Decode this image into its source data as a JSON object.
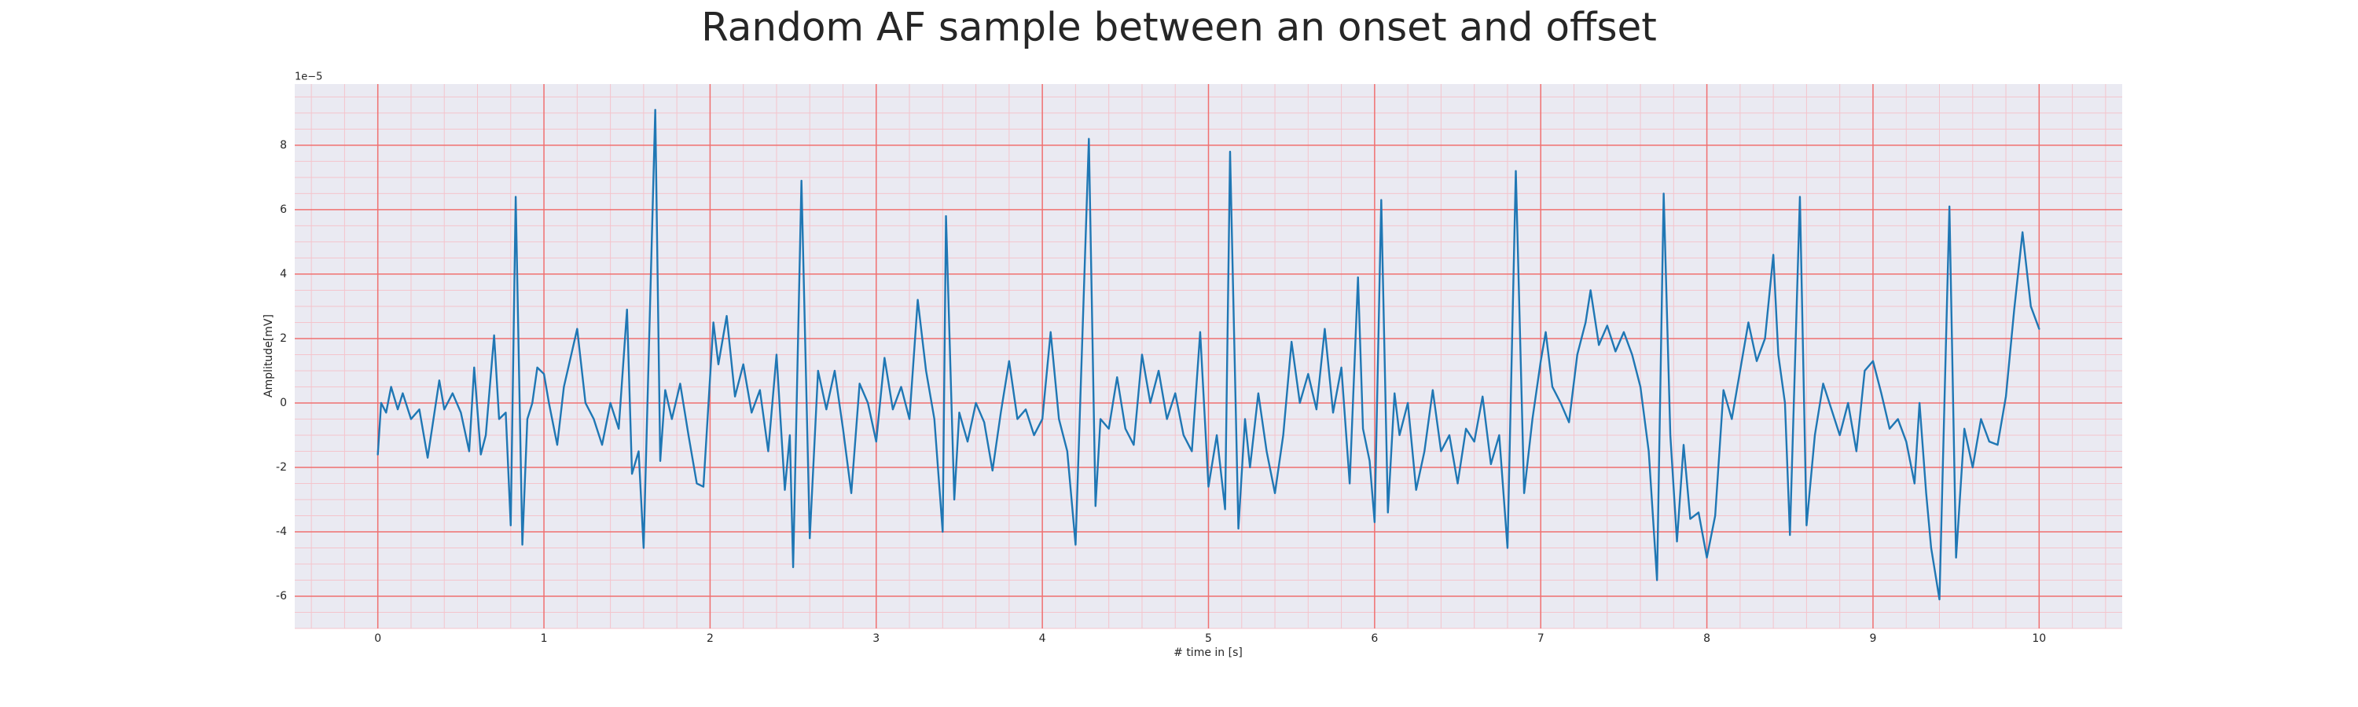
{
  "chart_data": {
    "type": "line",
    "title": "Random AF sample between an onset and offset",
    "xlabel": "# time in [s]",
    "ylabel": "Amplitude[mV]",
    "y_offset_label": "1e−5",
    "xlim": [
      -0.5,
      10.5
    ],
    "ylim": [
      -7,
      9.9
    ],
    "xticks": [
      0,
      1,
      2,
      3,
      4,
      5,
      6,
      7,
      8,
      9,
      10
    ],
    "yticks": [
      -6,
      -4,
      -2,
      0,
      2,
      4,
      6,
      8
    ],
    "grid": true,
    "grid_color": "#f07070",
    "minor_grid": true,
    "minor_grid_color": "#f4c4cc",
    "xminor_per_major": 5,
    "yminor_per_major": 4,
    "background": "#eaeaf2",
    "series": [
      {
        "color": "#1f77b4",
        "x": [
          0,
          0.02,
          0.05,
          0.08,
          0.12,
          0.15,
          0.2,
          0.25,
          0.3,
          0.37,
          0.4,
          0.45,
          0.5,
          0.55,
          0.58,
          0.62,
          0.65,
          0.7,
          0.73,
          0.77,
          0.8,
          0.83,
          0.87,
          0.9,
          0.93,
          0.96,
          1.0,
          1.03,
          1.08,
          1.12,
          1.2,
          1.25,
          1.3,
          1.35,
          1.4,
          1.45,
          1.5,
          1.53,
          1.57,
          1.6,
          1.67,
          1.7,
          1.73,
          1.77,
          1.82,
          1.87,
          1.92,
          1.96,
          2.02,
          2.05,
          2.1,
          2.15,
          2.2,
          2.25,
          2.3,
          2.35,
          2.4,
          2.45,
          2.48,
          2.5,
          2.55,
          2.6,
          2.65,
          2.7,
          2.75,
          2.8,
          2.85,
          2.9,
          2.95,
          3.0,
          3.05,
          3.1,
          3.15,
          3.2,
          3.25,
          3.3,
          3.35,
          3.4,
          3.42,
          3.47,
          3.5,
          3.55,
          3.6,
          3.65,
          3.7,
          3.75,
          3.8,
          3.85,
          3.9,
          3.95,
          4.0,
          4.05,
          4.1,
          4.15,
          4.2,
          4.28,
          4.32,
          4.35,
          4.4,
          4.45,
          4.5,
          4.55,
          4.6,
          4.65,
          4.7,
          4.75,
          4.8,
          4.85,
          4.9,
          4.95,
          5.0,
          5.05,
          5.1,
          5.13,
          5.18,
          5.22,
          5.25,
          5.3,
          5.35,
          5.4,
          5.45,
          5.5,
          5.55,
          5.6,
          5.65,
          5.7,
          5.75,
          5.8,
          5.85,
          5.9,
          5.93,
          5.97,
          6.0,
          6.04,
          6.08,
          6.12,
          6.15,
          6.2,
          6.25,
          6.3,
          6.35,
          6.4,
          6.45,
          6.5,
          6.55,
          6.6,
          6.65,
          6.7,
          6.75,
          6.8,
          6.85,
          6.9,
          6.95,
          7.0,
          7.03,
          7.07,
          7.12,
          7.17,
          7.22,
          7.27,
          7.3,
          7.35,
          7.4,
          7.45,
          7.5,
          7.55,
          7.6,
          7.65,
          7.7,
          7.74,
          7.78,
          7.82,
          7.86,
          7.9,
          7.95,
          8.0,
          8.05,
          8.1,
          8.15,
          8.2,
          8.25,
          8.3,
          8.35,
          8.4,
          8.43,
          8.47,
          8.5,
          8.56,
          8.6,
          8.65,
          8.7,
          8.75,
          8.8,
          8.85,
          8.9,
          8.95,
          9.0,
          9.05,
          9.1,
          9.15,
          9.2,
          9.25,
          9.28,
          9.32,
          9.35,
          9.4,
          9.46,
          9.5,
          9.55,
          9.6,
          9.65,
          9.7,
          9.75,
          9.8,
          9.85,
          9.9,
          9.95,
          10.0
        ],
        "values": [
          -1.6,
          0,
          -0.3,
          0.5,
          -0.2,
          0.3,
          -0.5,
          -0.2,
          -1.7,
          0.7,
          -0.2,
          0.3,
          -0.3,
          -1.5,
          1.1,
          -1.6,
          -1,
          2.1,
          -0.5,
          -0.3,
          -3.8,
          6.4,
          -4.4,
          -0.5,
          0,
          1.1,
          0.9,
          0,
          -1.3,
          0.5,
          2.3,
          0,
          -0.5,
          -1.3,
          0,
          -0.8,
          2.9,
          -2.2,
          -1.5,
          -4.5,
          9.1,
          -1.8,
          0.4,
          -0.5,
          0.6,
          -1,
          -2.5,
          -2.6,
          2.5,
          1.2,
          2.7,
          0.2,
          1.2,
          -0.3,
          0.4,
          -1.5,
          1.5,
          -2.7,
          -1,
          -5.1,
          6.9,
          -4.2,
          1,
          -0.2,
          1,
          -0.8,
          -2.8,
          0.6,
          0,
          -1.2,
          1.4,
          -0.2,
          0.5,
          -0.5,
          3.2,
          1,
          -0.5,
          -4,
          5.8,
          -3,
          -0.3,
          -1.2,
          0,
          -0.6,
          -2.1,
          -0.3,
          1.3,
          -0.5,
          -0.2,
          -1,
          -0.5,
          2.2,
          -0.5,
          -1.5,
          -4.4,
          8.2,
          -3.2,
          -0.5,
          -0.8,
          0.8,
          -0.8,
          -1.3,
          1.5,
          0,
          1,
          -0.5,
          0.3,
          -1,
          -1.5,
          2.2,
          -2.6,
          -1,
          -3.3,
          7.8,
          -3.9,
          -0.5,
          -2,
          0.3,
          -1.5,
          -2.8,
          -1,
          1.9,
          0,
          0.9,
          -0.2,
          2.3,
          -0.3,
          1.1,
          -2.5,
          3.9,
          -0.8,
          -1.8,
          -3.7,
          6.3,
          -3.4,
          0.3,
          -1,
          0,
          -2.7,
          -1.5,
          0.4,
          -1.5,
          -1,
          -2.5,
          -0.8,
          -1.2,
          0.2,
          -1.9,
          -1,
          -4.5,
          7.2,
          -2.8,
          -0.5,
          1.3,
          2.2,
          0.5,
          0,
          -0.6,
          1.5,
          2.5,
          3.5,
          1.8,
          2.4,
          1.6,
          2.2,
          1.5,
          0.5,
          -1.5,
          -5.5,
          6.5,
          -1,
          -4.3,
          -1.3,
          -3.6,
          -3.4,
          -4.8,
          -3.5,
          0.4,
          -0.5,
          1,
          2.5,
          1.3,
          2,
          4.6,
          1.5,
          0,
          -4.1,
          6.4,
          -3.8,
          -1,
          0.6,
          -0.2,
          -1,
          0,
          -1.5,
          1,
          1.3,
          0.3,
          -0.8,
          -0.5,
          -1.2,
          -2.5,
          0,
          -2.8,
          -4.5,
          -6.1,
          6.1,
          -4.8,
          -0.8,
          -2,
          -0.5,
          -1.2,
          -1.3,
          0.2,
          2.9,
          5.3,
          3,
          2.3
        ]
      }
    ]
  }
}
